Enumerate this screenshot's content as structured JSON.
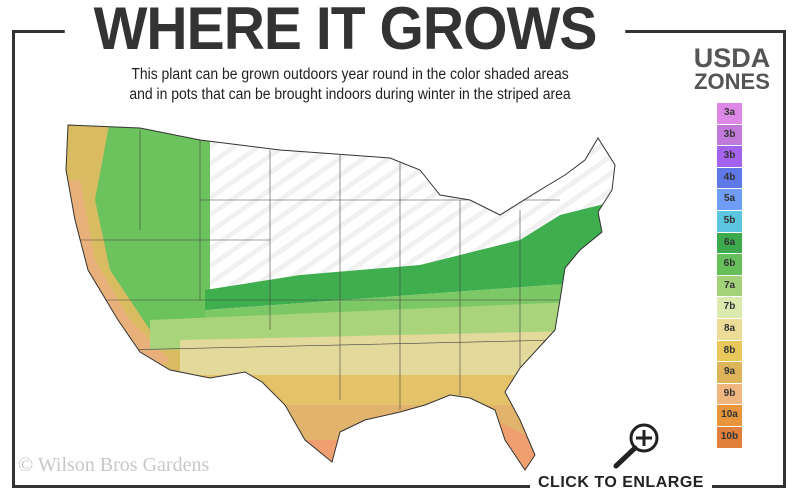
{
  "header": {
    "title": "WHERE IT GROWS",
    "subtitle_line1": "This plant can be grown outdoors year round in the color shaded areas",
    "subtitle_line2": "and in pots that can be brought indoors during winter in the striped area"
  },
  "legend": {
    "title_line1": "USDA",
    "title_line2": "ZONES",
    "zones": [
      {
        "label": "3a",
        "color": "#dd88e6"
      },
      {
        "label": "3b",
        "color": "#c07ad9"
      },
      {
        "label": "3b",
        "color": "#a463ee"
      },
      {
        "label": "4b",
        "color": "#5f78e8"
      },
      {
        "label": "5a",
        "color": "#6f9cf5"
      },
      {
        "label": "5b",
        "color": "#5cc6e0"
      },
      {
        "label": "6a",
        "color": "#3caa4c"
      },
      {
        "label": "6b",
        "color": "#66bf5a"
      },
      {
        "label": "7a",
        "color": "#a3d27a"
      },
      {
        "label": "7b",
        "color": "#dceab0"
      },
      {
        "label": "8a",
        "color": "#ecdc98"
      },
      {
        "label": "8b",
        "color": "#e8c85a"
      },
      {
        "label": "9a",
        "color": "#dcb45a"
      },
      {
        "label": "9b",
        "color": "#f0b680"
      },
      {
        "label": "10a",
        "color": "#e8963c"
      },
      {
        "label": "10b",
        "color": "#e0803a"
      }
    ]
  },
  "watermark": "© Wilson Bros Gardens",
  "enlarge": {
    "label": "CLICK TO ENLARGE",
    "icon": "magnifier-plus-icon"
  }
}
